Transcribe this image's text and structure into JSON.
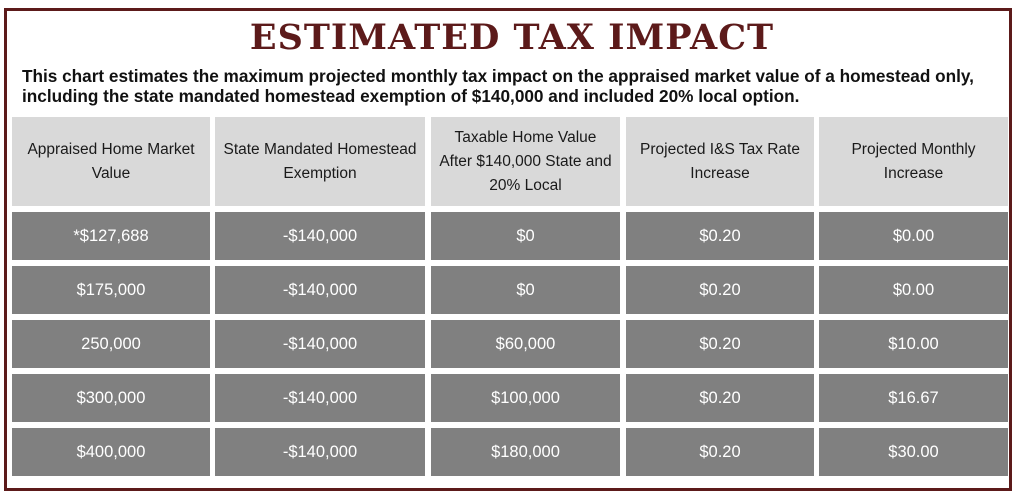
{
  "title": "ESTIMATED TAX IMPACT",
  "subtitle": "This chart estimates the maximum projected monthly tax impact on the appraised market value of a homestead only, including the state mandated homestead exemption of $140,000 and included 20% local option.",
  "table": {
    "headers": [
      "Appraised Home Market Value",
      "State Mandated Homestead Exemption",
      "Taxable Home Value After $140,000 State and 20% Local",
      "Projected I&S Tax Rate Increase",
      "Projected Monthly Increase"
    ],
    "rows": [
      [
        "*$127,688",
        "-$140,000",
        "$0",
        "$0.20",
        "$0.00"
      ],
      [
        "$175,000",
        "-$140,000",
        "$0",
        "$0.20",
        "$0.00"
      ],
      [
        "250,000",
        "-$140,000",
        "$60,000",
        "$0.20",
        "$10.00"
      ],
      [
        "$300,000",
        "-$140,000",
        "$100,000",
        "$0.20",
        "$16.67"
      ],
      [
        "$400,000",
        "-$140,000",
        "$180,000",
        "$0.20",
        "$30.00"
      ]
    ]
  }
}
